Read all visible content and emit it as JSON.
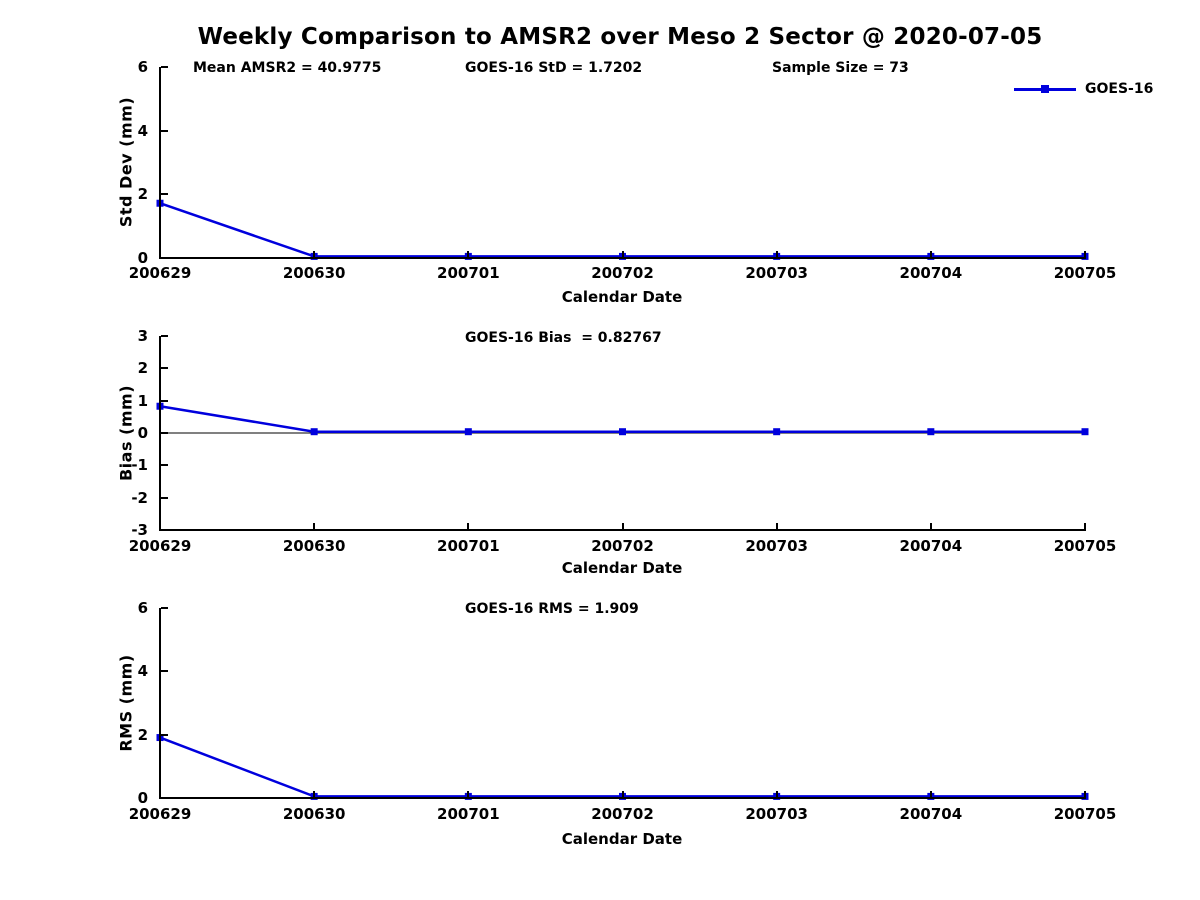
{
  "title": "Weekly Comparison to AMSR2 over Meso 2 Sector @ 2020-07-05",
  "legend": {
    "label": "GOES-16"
  },
  "colors": {
    "line": "#0000dd",
    "axis": "#000000",
    "text": "#000000",
    "background": "#ffffff"
  },
  "chart_data": {
    "type": "line",
    "x_categories": [
      "200629",
      "200630",
      "200701",
      "200702",
      "200703",
      "200704",
      "200705"
    ],
    "xlabel": "Calendar Date",
    "series_name": "GOES-16",
    "line_color": "#0000dd",
    "marker": "square",
    "legend_position": "top-right",
    "grid": false,
    "subplots": [
      {
        "name": "std-dev",
        "ylabel": "Std Dev (mm)",
        "ylim": [
          0,
          6
        ],
        "yticks": [
          0,
          2,
          4,
          6
        ],
        "values": [
          1.7202,
          0.05,
          0.05,
          0.05,
          0.05,
          0.05,
          0.05
        ],
        "zero_line": false,
        "annotations": [
          {
            "text": "Mean AMSR2 = 40.9775"
          },
          {
            "text": "GOES-16 StD = 1.7202"
          },
          {
            "text": "Sample Size = 73"
          }
        ]
      },
      {
        "name": "bias",
        "ylabel": "Bias (mm)",
        "ylim": [
          -3,
          3
        ],
        "yticks": [
          3,
          2,
          1,
          0,
          -1,
          -2,
          -3
        ],
        "values": [
          0.82767,
          0.04,
          0.04,
          0.04,
          0.04,
          0.04,
          0.04
        ],
        "zero_line": true,
        "annotations": [
          {
            "text": "GOES-16 Bias  = 0.82767"
          }
        ]
      },
      {
        "name": "rms",
        "ylabel": "RMS (mm)",
        "ylim": [
          0,
          6
        ],
        "yticks": [
          0,
          2,
          4,
          6
        ],
        "values": [
          1.909,
          0.05,
          0.05,
          0.05,
          0.05,
          0.05,
          0.05
        ],
        "zero_line": false,
        "annotations": [
          {
            "text": "GOES-16 RMS = 1.909"
          }
        ]
      }
    ],
    "stats": {
      "mean_amsr2": 40.9775,
      "goes16_std": 1.7202,
      "sample_size": 73,
      "goes16_bias": 0.82767,
      "goes16_rms": 1.909
    }
  }
}
